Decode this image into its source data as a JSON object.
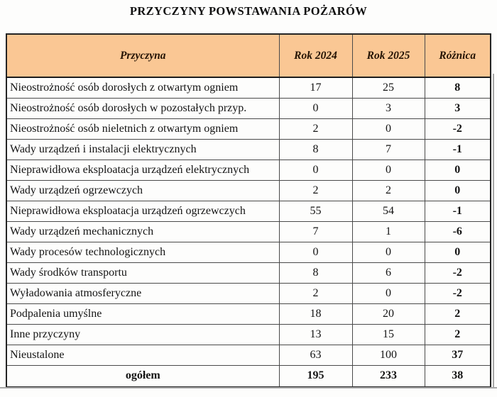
{
  "title": "PRZYCZYNY POWSTAWANIA POŻARÓW",
  "colors": {
    "header_bg": "#FAC794",
    "header_text": "#241304",
    "scan_edge": "#A8A8A8"
  },
  "table": {
    "headers": [
      "Przyczyna",
      "Rok 2024",
      "Rok 2025",
      "Różnica"
    ],
    "rows": [
      {
        "cause": "Nieostrożność osób dorosłych z otwartym ogniem",
        "rok2024": "17",
        "rok2025": "25",
        "roznica": "8"
      },
      {
        "cause": "Nieostrożność osób dorosłych w pozostałych przyp.",
        "rok2024": "0",
        "rok2025": "3",
        "roznica": "3"
      },
      {
        "cause": "Nieostrożność osób nieletnich z otwartym ogniem",
        "rok2024": "2",
        "rok2025": "0",
        "roznica": "-2"
      },
      {
        "cause": "Wady urządzeń i instalacji elektrycznych",
        "rok2024": "8",
        "rok2025": "7",
        "roznica": "-1"
      },
      {
        "cause": "Nieprawidłowa eksploatacja urządzeń elektrycznych",
        "rok2024": "0",
        "rok2025": "0",
        "roznica": "0"
      },
      {
        "cause": "Wady urządzeń ogrzewczych",
        "rok2024": "2",
        "rok2025": "2",
        "roznica": "0"
      },
      {
        "cause": "Nieprawidłowa eksploatacja urządzeń ogrzewczych",
        "rok2024": "55",
        "rok2025": "54",
        "roznica": "-1"
      },
      {
        "cause": "Wady urządzeń mechanicznych",
        "rok2024": "7",
        "rok2025": "1",
        "roznica": "-6"
      },
      {
        "cause": "Wady procesów technologicznych",
        "rok2024": "0",
        "rok2025": "0",
        "roznica": "0"
      },
      {
        "cause": "Wady środków transportu",
        "rok2024": "8",
        "rok2025": "6",
        "roznica": "-2"
      },
      {
        "cause": "Wyładowania atmosferyczne",
        "rok2024": "2",
        "rok2025": "0",
        "roznica": "-2"
      },
      {
        "cause": "Podpalenia umyślne",
        "rok2024": "18",
        "rok2025": "20",
        "roznica": "2"
      },
      {
        "cause": "Inne przyczyny",
        "rok2024": "13",
        "rok2025": "15",
        "roznica": "2"
      },
      {
        "cause": "Nieustalone",
        "rok2024": "63",
        "rok2025": "100",
        "roznica": "37"
      }
    ],
    "total": {
      "label": "ogółem",
      "rok2024": "195",
      "rok2025": "233",
      "roznica": "38"
    }
  }
}
